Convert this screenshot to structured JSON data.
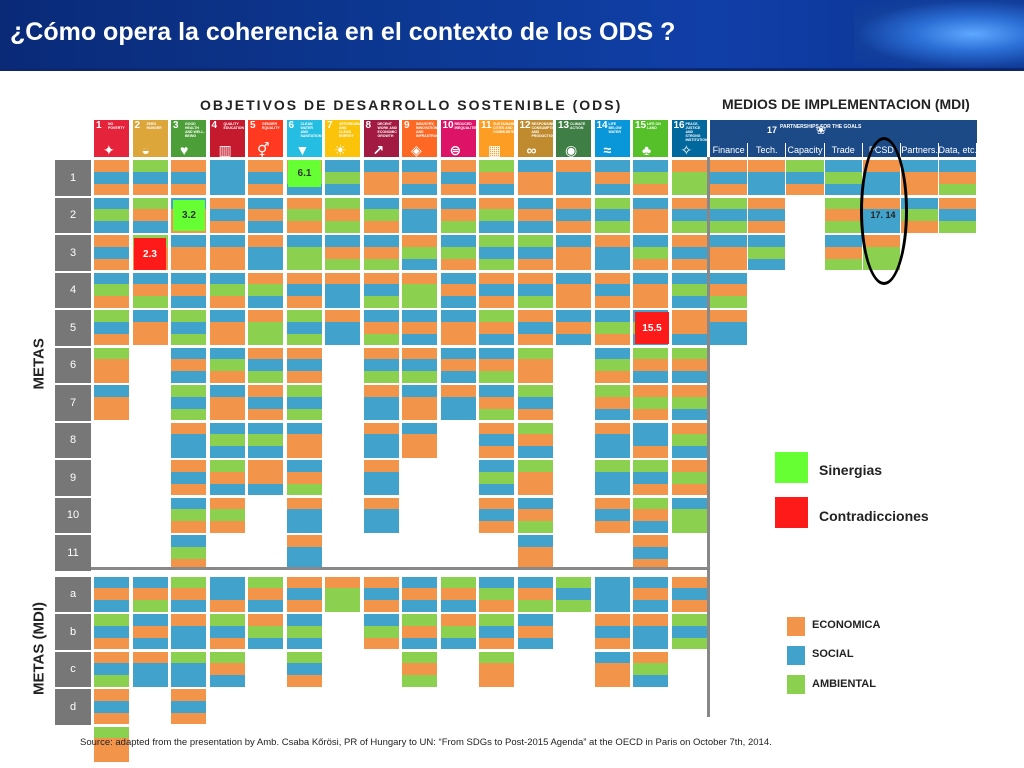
{
  "title": "¿Cómo opera la coherencia en el contexto de los ODS ?",
  "sdg_heading": "OBJETIVOS DE DESARROLLO SOSTENIBLE (ODS)",
  "mdi_heading": "MEDIOS DE IMPLEMENTACION (MDI)",
  "colors": {
    "economica": "#f2954b",
    "social": "#41a3cc",
    "ambiental": "#8cd04f",
    "synergy": "#66ff33",
    "contradiction": "#ff1a1a"
  },
  "sdg_icons": [
    {
      "num": "1",
      "text": "NO POVERTY",
      "color": "#e5243b",
      "glyph": "✦"
    },
    {
      "num": "2",
      "text": "ZERO HUNGER",
      "color": "#dda63a",
      "glyph": "◒"
    },
    {
      "num": "3",
      "text": "GOOD HEALTH AND WELL-BEING",
      "color": "#4c9f38",
      "glyph": "♥"
    },
    {
      "num": "4",
      "text": "QUALITY EDUCATION",
      "color": "#c5192d",
      "glyph": "▥"
    },
    {
      "num": "5",
      "text": "GENDER EQUALITY",
      "color": "#ff3a21",
      "glyph": "⚥"
    },
    {
      "num": "6",
      "text": "CLEAN WATER AND SANITATION",
      "color": "#26bde2",
      "glyph": "▼"
    },
    {
      "num": "7",
      "text": "AFFORDABLE AND CLEAN ENERGY",
      "color": "#fcc30b",
      "glyph": "☀"
    },
    {
      "num": "8",
      "text": "DECENT WORK AND ECONOMIC GROWTH",
      "color": "#a21942",
      "glyph": "↗"
    },
    {
      "num": "9",
      "text": "INDUSTRY, INNOVATION AND INFRASTRUCTURE",
      "color": "#fd6925",
      "glyph": "◈"
    },
    {
      "num": "10",
      "text": "REDUCED INEQUALITIES",
      "color": "#dd1367",
      "glyph": "⊜"
    },
    {
      "num": "11",
      "text": "SUSTAINABLE CITIES AND COMMUNITIES",
      "color": "#fd9d24",
      "glyph": "▦"
    },
    {
      "num": "12",
      "text": "RESPONSIBLE CONSUMPTION AND PRODUCTION",
      "color": "#bf8b2e",
      "glyph": "∞"
    },
    {
      "num": "13",
      "text": "CLIMATE ACTION",
      "color": "#3f7e44",
      "glyph": "◉"
    },
    {
      "num": "14",
      "text": "LIFE BELOW WATER",
      "color": "#0a97d9",
      "glyph": "≈"
    },
    {
      "num": "15",
      "text": "LIFE ON LAND",
      "color": "#56c02b",
      "glyph": "♣"
    },
    {
      "num": "16",
      "text": "PEACE, JUSTICE AND STRONG INSTITUTIONS",
      "color": "#00689d",
      "glyph": "✧"
    }
  ],
  "mdi_band": {
    "num": "17",
    "text": "PARTNERSHIPS FOR THE GOALS",
    "glyph": "❀"
  },
  "mdi_columns": [
    "Finance",
    "Tech.",
    "Capacity",
    "Trade",
    "PCSD",
    "Partners.",
    "Data, etc."
  ],
  "row_labels": [
    "1",
    "2",
    "3",
    "4",
    "5",
    "6",
    "7",
    "8",
    "9",
    "10",
    "11",
    "a",
    "b",
    "c",
    "d"
  ],
  "metas_label": "METAS",
  "metas_mdi_label": "METAS (MDI)",
  "badges": [
    {
      "text": "6.1",
      "type": "synergy"
    },
    {
      "text": "3.2",
      "type": "synergy"
    },
    {
      "text": "2.3",
      "type": "contradiction"
    },
    {
      "text": "15.5",
      "type": "contradiction"
    },
    {
      "text": "17. 14",
      "type": "pcsd"
    }
  ],
  "legend": {
    "synergy": "Sinergias",
    "contradiction": "Contradicciones",
    "economica": "ECONOMICA",
    "social": "SOCIAL",
    "ambiental": "AMBIENTAL"
  },
  "grid": {
    "sdg_counts": [
      7,
      5,
      13,
      10,
      9,
      11,
      5,
      10,
      8,
      7,
      10,
      11,
      5,
      10,
      12,
      10
    ],
    "sdg_means": [
      5,
      3,
      4,
      3,
      2,
      3,
      1,
      2,
      3,
      2,
      3,
      2,
      1,
      3,
      3,
      2
    ],
    "mdi_counts": [
      5,
      3,
      1,
      3,
      3,
      2,
      2
    ],
    "pattern": "OSASOSASOSOSASOSAOSOASOSOAOSAOSOSAOSOAOSASOSOOSASAOSOSOAOSSOASOSOAOSOSAOSAOSOSOASOSAOSOSOASOSASOSAOSOSOAOSOSSOSOASOSOA"
  },
  "source": "Source: adapted from the presentation by Amb. Csaba Kőrösi, PR of Hungary to UN: “From SDGs to Post-2015 Agenda” at the OECD in Paris on October 7th, 2014."
}
